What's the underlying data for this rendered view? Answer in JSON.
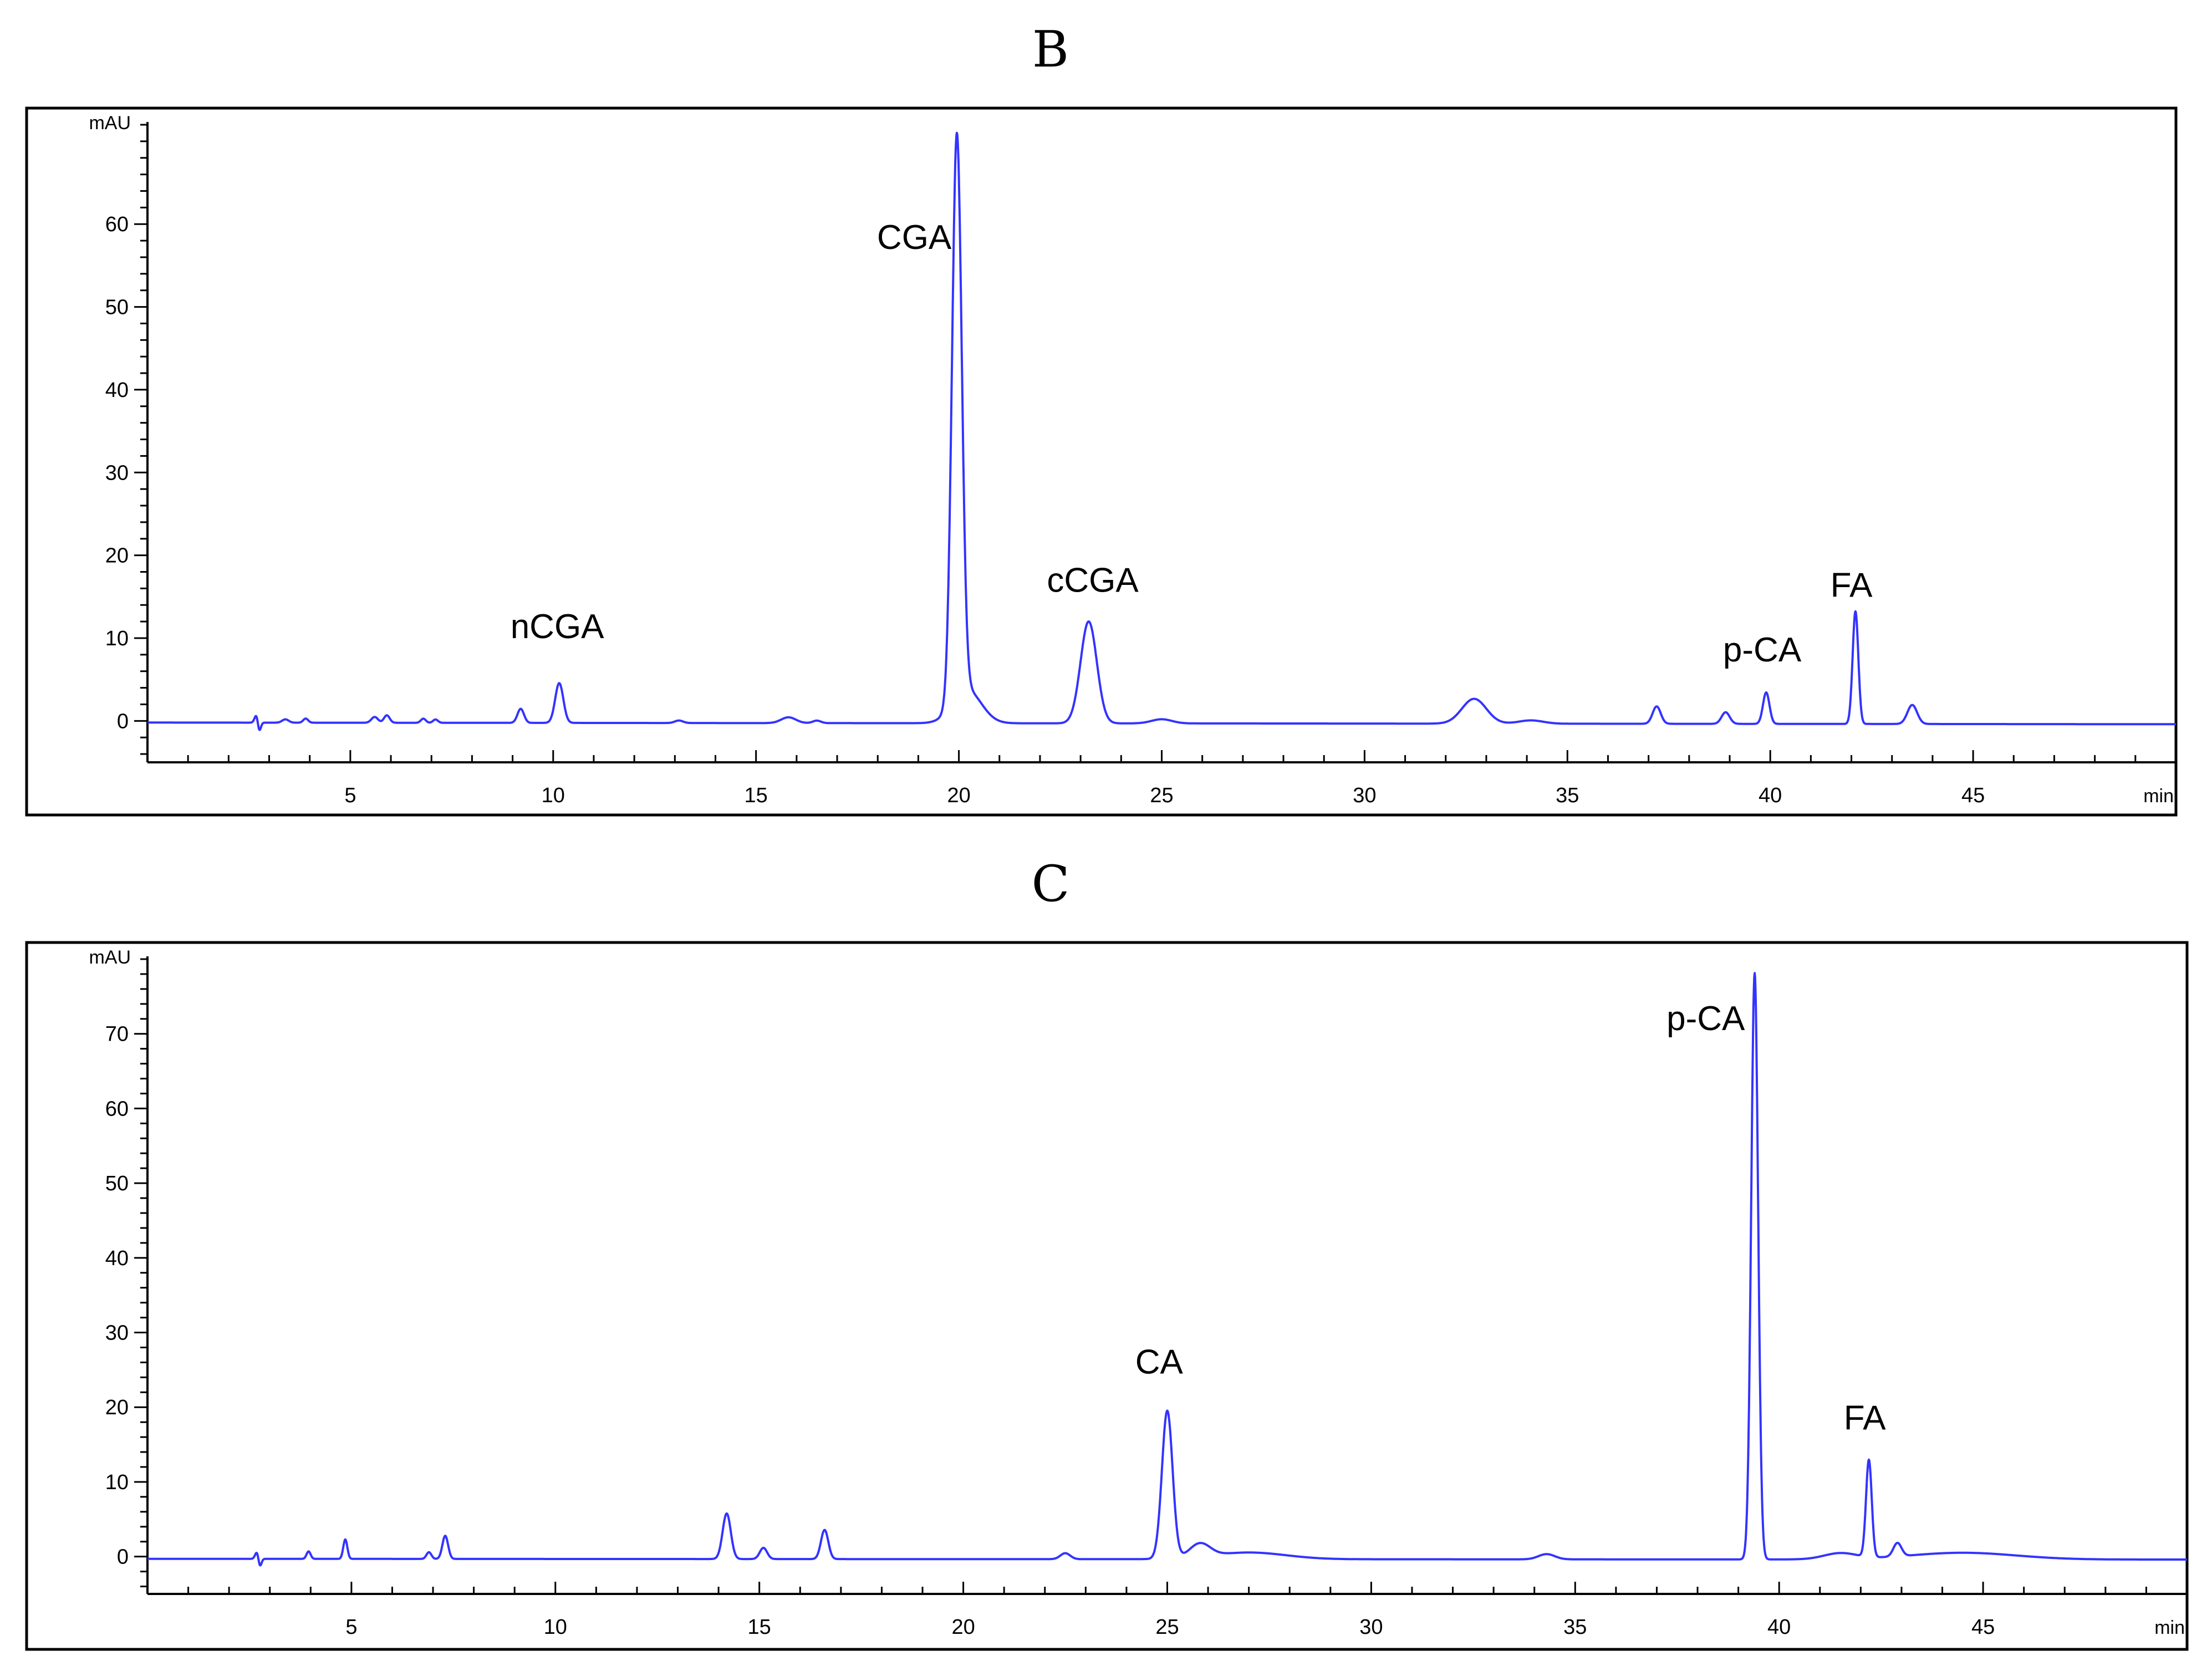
{
  "chart_data": [
    {
      "type": "line",
      "panel_label": "B",
      "ylabel": "mAU",
      "xlabel": "min",
      "xlim": [
        0,
        50
      ],
      "ylim": [
        -5,
        72
      ],
      "x_ticks": [
        5,
        10,
        15,
        20,
        25,
        30,
        35,
        40,
        45
      ],
      "y_ticks": [
        0,
        10,
        20,
        30,
        40,
        50,
        60
      ],
      "grid": false,
      "trace_color": "#3333ff",
      "baseline": {
        "start": -0.2,
        "end": -0.4
      },
      "peaks": [
        {
          "x": 2.7,
          "height": 1.2,
          "width": 0.05
        },
        {
          "x": 2.75,
          "height": -1.5,
          "width": 0.04
        },
        {
          "x": 3.4,
          "height": 0.4,
          "width": 0.08
        },
        {
          "x": 3.9,
          "height": 0.5,
          "width": 0.06
        },
        {
          "x": 5.6,
          "height": 0.7,
          "width": 0.08
        },
        {
          "x": 5.9,
          "height": 0.9,
          "width": 0.07
        },
        {
          "x": 6.8,
          "height": 0.5,
          "width": 0.06
        },
        {
          "x": 7.1,
          "height": 0.4,
          "width": 0.06
        },
        {
          "x": 9.2,
          "height": 1.7,
          "width": 0.08
        },
        {
          "x": 10.15,
          "height": 4.8,
          "width": 0.1
        },
        {
          "x": 13.1,
          "height": 0.3,
          "width": 0.1
        },
        {
          "x": 15.8,
          "height": 0.7,
          "width": 0.18
        },
        {
          "x": 16.5,
          "height": 0.3,
          "width": 0.1
        },
        {
          "x": 19.95,
          "height": 68.2,
          "width": 0.12
        },
        {
          "x": 20.2,
          "height": 4.0,
          "width": 0.35
        },
        {
          "x": 23.2,
          "height": 12.3,
          "width": 0.2
        },
        {
          "x": 25.0,
          "height": 0.5,
          "width": 0.25
        },
        {
          "x": 32.7,
          "height": 3.0,
          "width": 0.3
        },
        {
          "x": 34.1,
          "height": 0.4,
          "width": 0.3
        },
        {
          "x": 37.2,
          "height": 2.1,
          "width": 0.1
        },
        {
          "x": 38.9,
          "height": 1.4,
          "width": 0.1
        },
        {
          "x": 39.9,
          "height": 3.8,
          "width": 0.08
        },
        {
          "x": 42.1,
          "height": 13.6,
          "width": 0.07
        },
        {
          "x": 43.5,
          "height": 2.3,
          "width": 0.12
        }
      ],
      "annotations": [
        {
          "text": "nCGA",
          "x": 10.1,
          "y": 10.0
        },
        {
          "text": "CGA",
          "x": 18.9,
          "y": 57.0
        },
        {
          "text": "cCGA",
          "x": 23.3,
          "y": 15.6
        },
        {
          "text": "p-CA",
          "x": 39.8,
          "y": 7.2
        },
        {
          "text": "FA",
          "x": 42.0,
          "y": 15.0
        }
      ]
    },
    {
      "type": "line",
      "panel_label": "C",
      "ylabel": "mAU",
      "xlabel": "min",
      "xlim": [
        0,
        50
      ],
      "ylim": [
        -5,
        80
      ],
      "x_ticks": [
        5,
        10,
        15,
        20,
        25,
        30,
        35,
        40,
        45
      ],
      "y_ticks": [
        0,
        10,
        20,
        30,
        40,
        50,
        60,
        70
      ],
      "grid": false,
      "trace_color": "#3333ff",
      "baseline": {
        "start": -0.3,
        "end": -0.4
      },
      "peaks": [
        {
          "x": 2.7,
          "height": 1.2,
          "width": 0.05
        },
        {
          "x": 2.75,
          "height": -1.5,
          "width": 0.04
        },
        {
          "x": 3.95,
          "height": 1.0,
          "width": 0.05
        },
        {
          "x": 4.85,
          "height": 2.6,
          "width": 0.05
        },
        {
          "x": 6.9,
          "height": 0.9,
          "width": 0.06
        },
        {
          "x": 7.3,
          "height": 3.1,
          "width": 0.07
        },
        {
          "x": 14.2,
          "height": 6.1,
          "width": 0.1
        },
        {
          "x": 15.1,
          "height": 1.5,
          "width": 0.09
        },
        {
          "x": 16.6,
          "height": 3.9,
          "width": 0.09
        },
        {
          "x": 22.5,
          "height": 0.8,
          "width": 0.12
        },
        {
          "x": 25.0,
          "height": 19.8,
          "width": 0.13
        },
        {
          "x": 25.8,
          "height": 1.8,
          "width": 0.25
        },
        {
          "x": 27.0,
          "height": 0.9,
          "width": 0.9
        },
        {
          "x": 34.3,
          "height": 0.7,
          "width": 0.2
        },
        {
          "x": 39.4,
          "height": 78.5,
          "width": 0.085
        },
        {
          "x": 41.5,
          "height": 0.8,
          "width": 0.4
        },
        {
          "x": 42.2,
          "height": 13.0,
          "width": 0.07
        },
        {
          "x": 42.9,
          "height": 1.8,
          "width": 0.1
        },
        {
          "x": 44.5,
          "height": 0.9,
          "width": 1.3
        }
      ],
      "annotations": [
        {
          "text": "CA",
          "x": 24.8,
          "y": 24.5
        },
        {
          "text": "p-CA",
          "x": 38.2,
          "y": 70.5
        },
        {
          "text": "FA",
          "x": 42.1,
          "y": 17.0
        }
      ]
    }
  ]
}
